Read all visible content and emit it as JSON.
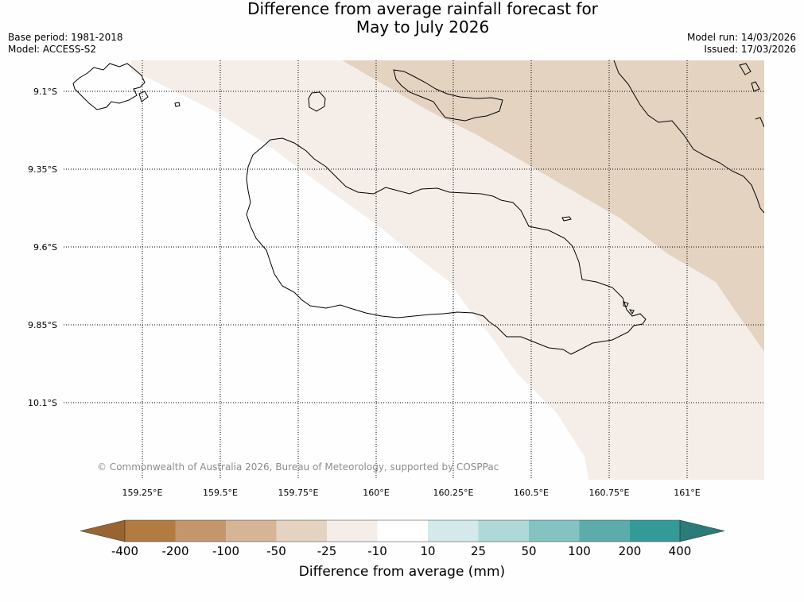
{
  "title_line1": "Difference from average rainfall forecast for",
  "title_line2": "May to July 2026",
  "meta_left": [
    "Base period: 1981-2018",
    "Model: ACCESS-S2"
  ],
  "meta_right": [
    "Model run: 14/03/2026",
    "Issued: 17/03/2026"
  ],
  "lat_ticks": [
    "9.1°S",
    "9.35°S",
    "9.6°S",
    "9.85°S",
    "10.1°S"
  ],
  "lon_ticks": [
    "159.25°E",
    "159.5°E",
    "159.75°E",
    "160°E",
    "160.25°E",
    "160.5°E",
    "160.75°E",
    "161°E"
  ],
  "copyright": "© Commonwealth of Australia 2026, Bureau of Meteorology, supported by COSPPac",
  "colorbar": {
    "label": "Difference from average (mm)",
    "ticks": [
      "-400",
      "-200",
      "-100",
      "-50",
      "-25",
      "-10",
      "10",
      "25",
      "50",
      "100",
      "200",
      "400"
    ],
    "colors": [
      "#9a6430",
      "#b27b42",
      "#c3966c",
      "#d6b597",
      "#e5d3c2",
      "#f5eee8",
      "#ffffff",
      "#d4e9e9",
      "#aed9d8",
      "#84c3c1",
      "#5bacab",
      "#349a98",
      "#2a7b79"
    ]
  },
  "map_colors": {
    "white": "#fefefe",
    "light": "#f5eee8",
    "mid": "#e5d3c2"
  }
}
